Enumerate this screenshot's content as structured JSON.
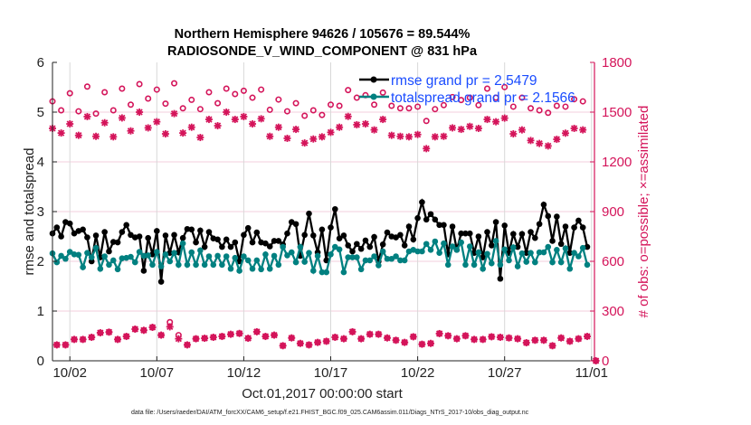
{
  "chart_data": {
    "type": "line",
    "title": [
      "Northern Hemisphere 94626 / 105676 = 89.544%",
      "RADIOSONDE_V_WIND_COMPONENT @ 831 hPa"
    ],
    "xlabel": "Oct.01,2017 00:00:00 start",
    "ylabel": "rmse and totalspread",
    "ylabel_right": "# of obs: o=possible; ×=assimilated",
    "footer": "data file: /Users/raeder/DAI/ATM_forcXX/CAM6_setup/f.e21.FHIST_BGC.f09_025.CAM6assim.011/Diags_NTrS_2017-10/obs_diag_output.nc",
    "xlim": [
      "2017-10-01 00:00",
      "2017-11-01 04:00"
    ],
    "year": 2017,
    "xticks": [
      "10/02",
      "10/07",
      "10/12",
      "10/17",
      "10/22",
      "10/27",
      "11/01"
    ],
    "ylim": [
      0,
      6
    ],
    "yticks": [
      0,
      1,
      2,
      3,
      4,
      5,
      6
    ],
    "ylim_right": [
      0,
      1800
    ],
    "yticks_right": [
      0,
      300,
      600,
      900,
      1200,
      1500,
      1800
    ],
    "grid": true,
    "legend_placement": "top-right",
    "colors": {
      "rmse": "#000000",
      "totalspread": "#008080",
      "counts": "#d4145a",
      "legend_text": "#1a4cff",
      "right_axis": "#d4145a"
    },
    "series": [
      {
        "name": "rmse grand pr = 2.5479",
        "axis": "left",
        "marker": "filled-circle",
        "color": "#000000",
        "start": "2017-10-01 00:00",
        "step_hours": 6,
        "values": [
          2.56,
          2.68,
          2.5,
          2.79,
          2.76,
          2.56,
          2.61,
          2.64,
          2.48,
          2.0,
          2.52,
          2.08,
          2.59,
          2.2,
          2.39,
          2.38,
          2.59,
          2.73,
          2.53,
          2.48,
          2.5,
          1.81,
          2.47,
          2.14,
          2.61,
          1.59,
          2.52,
          2.17,
          2.53,
          2.18,
          2.47,
          2.65,
          2.64,
          2.38,
          2.62,
          2.29,
          2.59,
          2.46,
          2.44,
          2.29,
          2.44,
          2.29,
          2.38,
          2.0,
          2.53,
          2.67,
          2.38,
          2.58,
          2.38,
          2.36,
          2.3,
          2.41,
          2.41,
          2.34,
          2.56,
          2.79,
          2.75,
          2.11,
          2.53,
          2.96,
          2.52,
          2.18,
          2.64,
          2.02,
          2.68,
          3.05,
          2.46,
          2.52,
          2.32,
          2.2,
          2.35,
          2.25,
          2.42,
          2.29,
          2.49,
          2.0,
          2.34,
          2.58,
          2.5,
          2.48,
          2.53,
          2.32,
          2.7,
          2.44,
          2.87,
          3.19,
          2.84,
          2.95,
          2.84,
          2.73,
          2.73,
          2.14,
          2.7,
          2.23,
          2.56,
          2.56,
          2.56,
          2.17,
          2.5,
          2.08,
          2.59,
          2.32,
          2.79,
          1.65,
          2.72,
          2.17,
          2.55,
          2.29,
          2.55,
          2.17,
          2.59,
          2.47,
          2.75,
          3.14,
          2.91,
          2.41,
          2.9,
          2.35,
          2.7,
          2.17,
          2.68,
          2.82,
          2.68,
          2.29
        ]
      },
      {
        "name": "totalspread grand pr = 2.1566",
        "axis": "left",
        "marker": "filled-circle",
        "color": "#008080",
        "start": "2017-10-01 00:00",
        "step_hours": 6,
        "values": [
          2.16,
          1.98,
          2.11,
          2.05,
          2.19,
          2.14,
          2.13,
          1.88,
          2.17,
          2.08,
          2.27,
          1.85,
          2.1,
          1.93,
          2.02,
          1.84,
          2.06,
          2.07,
          2.09,
          1.98,
          2.19,
          2.11,
          2.12,
          1.93,
          2.19,
          1.9,
          2.14,
          2.0,
          2.17,
          1.93,
          2.36,
          1.93,
          2.18,
          1.93,
          2.22,
          1.93,
          2.1,
          1.93,
          2.11,
          1.93,
          2.1,
          1.85,
          2.07,
          1.81,
          2.1,
          2.02,
          1.85,
          2.02,
          1.84,
          2.14,
          1.85,
          2.11,
          1.93,
          2.29,
          2.12,
          2.18,
          1.98,
          2.29,
          1.99,
          2.17,
          1.81,
          2.11,
          1.78,
          1.78,
          2.14,
          2.29,
          2.24,
          1.78,
          2.08,
          2.08,
          2.08,
          1.84,
          2.02,
          2.02,
          2.1,
          1.92,
          2.2,
          2.05,
          2.05,
          2.1,
          2.02,
          2.02,
          2.2,
          2.23,
          2.2,
          2.2,
          2.35,
          2.23,
          2.4,
          2.17,
          2.36,
          1.93,
          2.3,
          2.23,
          2.38,
          1.93,
          2.3,
          1.93,
          2.18,
          1.85,
          2.15,
          1.96,
          2.41,
          1.93,
          2.24,
          2.02,
          2.28,
          1.9,
          2.16,
          1.99,
          2.17,
          1.98,
          2.18,
          2.18,
          2.29,
          1.98,
          2.23,
          1.98,
          2.26,
          1.85,
          2.17,
          2.1,
          2.27,
          1.93
        ]
      },
      {
        "axis": "right",
        "marker": "open-circle",
        "color": "#d4145a",
        "start": "2017-10-01 00:00",
        "step_hours": 12,
        "values": [
          1565,
          1511,
          1614,
          1505,
          1654,
          1491,
          1620,
          1511,
          1642,
          1545,
          1669,
          1582,
          1636,
          1551,
          1674,
          1523,
          1574,
          1518,
          1620,
          1554,
          1642,
          1609,
          1629,
          1587,
          1636,
          1514,
          1576,
          1505,
          1554,
          1478,
          1511,
          1483,
          1545,
          1538,
          1633,
          1587,
          1602,
          1545,
          1618,
          1538,
          1523,
          1523,
          1533,
          1447,
          1518,
          1542,
          1591,
          1573,
          1587,
          1542,
          1642,
          1587,
          1651,
          1533,
          1587,
          1523,
          1511,
          1496,
          1538,
          1533,
          1578,
          1565
        ]
      },
      {
        "axis": "right",
        "marker": "asterisk",
        "color": "#d4145a",
        "start": "2017-10-01 00:00",
        "step_hours": 12,
        "values": [
          1402,
          1374,
          1429,
          1360,
          1473,
          1354,
          1436,
          1351,
          1465,
          1387,
          1500,
          1405,
          1442,
          1369,
          1491,
          1374,
          1409,
          1347,
          1456,
          1418,
          1500,
          1456,
          1473,
          1429,
          1460,
          1354,
          1409,
          1342,
          1396,
          1314,
          1338,
          1351,
          1378,
          1409,
          1474,
          1424,
          1429,
          1393,
          1456,
          1360,
          1354,
          1351,
          1365,
          1280,
          1351,
          1354,
          1405,
          1396,
          1414,
          1402,
          1456,
          1442,
          1464,
          1369,
          1393,
          1329,
          1311,
          1296,
          1336,
          1373,
          1402,
          1393
        ]
      },
      {
        "axis": "right",
        "marker": "open-circle",
        "color": "#d4145a",
        "start": "2017-10-01 06:00",
        "step_hours": 12,
        "values": [
          96,
          96,
          129,
          129,
          142,
          169,
          173,
          129,
          147,
          191,
          184,
          202,
          155,
          233,
          155,
          96,
          133,
          136,
          142,
          147,
          160,
          165,
          136,
          175,
          147,
          155,
          91,
          138,
          105,
          96,
          111,
          118,
          142,
          133,
          175,
          133,
          160,
          160,
          138,
          124,
          111,
          145,
          100,
          105,
          164,
          151,
          133,
          151,
          129,
          129,
          145,
          142,
          138,
          133,
          109,
          124,
          124,
          91,
          138,
          118,
          133,
          147,
          0
        ]
      },
      {
        "axis": "right",
        "marker": "asterisk",
        "color": "#d4145a",
        "start": "2017-10-01 06:00",
        "step_hours": 12,
        "values": [
          96,
          96,
          129,
          129,
          142,
          169,
          173,
          129,
          147,
          191,
          184,
          202,
          155,
          205,
          133,
          96,
          133,
          136,
          142,
          147,
          160,
          165,
          136,
          175,
          147,
          155,
          91,
          138,
          105,
          96,
          111,
          118,
          142,
          133,
          175,
          133,
          160,
          160,
          138,
          124,
          111,
          145,
          100,
          105,
          164,
          151,
          133,
          151,
          129,
          129,
          145,
          142,
          138,
          133,
          109,
          124,
          124,
          91,
          138,
          118,
          133,
          147,
          0
        ]
      }
    ]
  }
}
